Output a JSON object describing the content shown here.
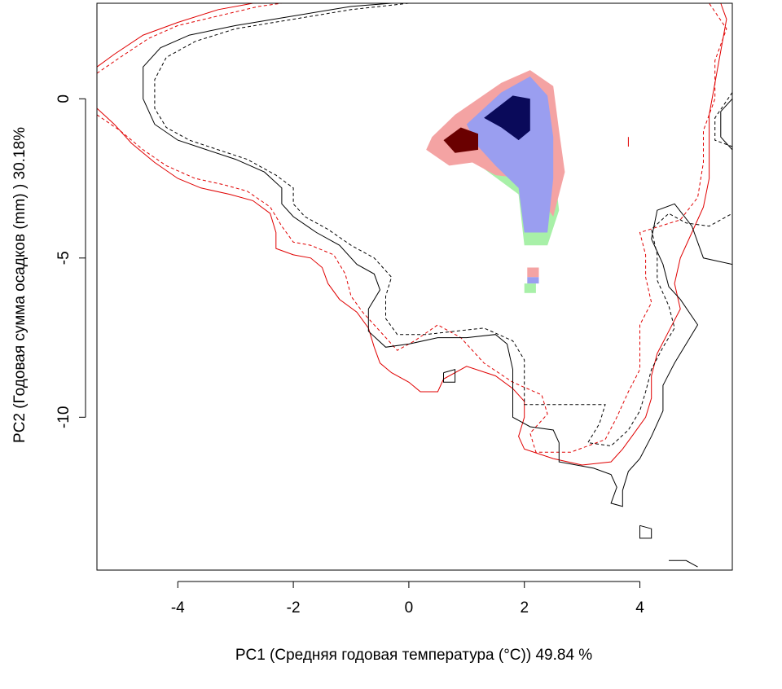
{
  "chart_data": {
    "type": "heatmap",
    "title": "",
    "xlabel": "PC1 (Средняя годовая температура (°C)) 49.84 %",
    "ylabel": "PC2 (Годовая сумма осадков  (mm) ) 30.18%",
    "xlim": [
      -5.4,
      5.6
    ],
    "ylim": [
      -14.8,
      3.0
    ],
    "x_ticks": [
      -4,
      -2,
      0,
      2,
      4
    ],
    "y_ticks": [
      0,
      -5,
      -10
    ],
    "grid": false,
    "legend": "none",
    "colors": {
      "red_contour": "#e00000",
      "black_contour": "#000000",
      "blue_density": "#9a9ef0",
      "blue_peak": "#0a0a5a",
      "red_density": "#f4a3a3",
      "red_peak": "#6a0000",
      "green_region": "#a8f0a8"
    },
    "series": [
      {
        "style": "red-solid",
        "color": "#e00000",
        "dash": false,
        "points": [
          [
            -5.4,
            -0.3
          ],
          [
            -5.1,
            -0.8
          ],
          [
            -4.8,
            -1.4
          ],
          [
            -4.4,
            -2.0
          ],
          [
            -4.0,
            -2.5
          ],
          [
            -3.6,
            -2.8
          ],
          [
            -3.1,
            -3.0
          ],
          [
            -2.7,
            -3.2
          ],
          [
            -2.4,
            -3.6
          ],
          [
            -2.3,
            -4.2
          ],
          [
            -2.3,
            -4.7
          ],
          [
            -2.0,
            -4.9
          ],
          [
            -1.7,
            -5.0
          ],
          [
            -1.5,
            -5.3
          ],
          [
            -1.4,
            -5.8
          ],
          [
            -1.2,
            -6.3
          ],
          [
            -0.9,
            -6.7
          ],
          [
            -0.7,
            -7.2
          ],
          [
            -0.6,
            -7.8
          ],
          [
            -0.5,
            -8.3
          ],
          [
            -0.3,
            -8.6
          ],
          [
            0.0,
            -8.9
          ],
          [
            0.2,
            -9.2
          ],
          [
            0.5,
            -9.2
          ],
          [
            0.6,
            -8.8
          ],
          [
            1.0,
            -8.4
          ],
          [
            1.5,
            -8.7
          ],
          [
            1.8,
            -9.1
          ],
          [
            2.0,
            -9.5
          ],
          [
            2.0,
            -10.0
          ],
          [
            1.9,
            -10.6
          ],
          [
            2.0,
            -11.0
          ],
          [
            2.5,
            -11.3
          ],
          [
            3.0,
            -11.5
          ],
          [
            3.5,
            -11.4
          ],
          [
            3.7,
            -11.0
          ],
          [
            3.9,
            -10.5
          ],
          [
            4.1,
            -10.0
          ],
          [
            4.2,
            -9.4
          ],
          [
            4.2,
            -8.7
          ],
          [
            4.3,
            -8.0
          ],
          [
            4.5,
            -7.3
          ],
          [
            4.7,
            -6.6
          ],
          [
            4.6,
            -5.8
          ],
          [
            4.7,
            -5.0
          ],
          [
            4.9,
            -4.2
          ],
          [
            5.1,
            -3.4
          ],
          [
            5.2,
            -2.5
          ],
          [
            5.2,
            -1.5
          ],
          [
            5.2,
            -0.5
          ],
          [
            5.3,
            0.5
          ],
          [
            5.4,
            1.5
          ],
          [
            5.5,
            2.5
          ],
          [
            5.4,
            3.0
          ]
        ]
      },
      {
        "style": "red-solid-top",
        "color": "#e00000",
        "dash": false,
        "points": [
          [
            -5.4,
            1.0
          ],
          [
            -5.1,
            1.4
          ],
          [
            -4.6,
            2.0
          ],
          [
            -4.0,
            2.4
          ],
          [
            -3.3,
            2.8
          ],
          [
            -2.7,
            3.0
          ],
          [
            -2.2,
            3.0
          ]
        ]
      },
      {
        "style": "red-dashed",
        "color": "#e00000",
        "dash": true,
        "points": [
          [
            -5.4,
            0.8
          ],
          [
            -5.0,
            1.3
          ],
          [
            -4.5,
            1.9
          ],
          [
            -4.0,
            2.3
          ],
          [
            -3.3,
            2.6
          ],
          [
            -2.6,
            2.9
          ],
          [
            -2.2,
            3.0
          ]
        ]
      },
      {
        "style": "red-dashed-main",
        "color": "#e00000",
        "dash": true,
        "points": [
          [
            -5.4,
            -0.5
          ],
          [
            -5.0,
            -1.0
          ],
          [
            -4.6,
            -1.6
          ],
          [
            -4.2,
            -2.1
          ],
          [
            -3.7,
            -2.5
          ],
          [
            -3.2,
            -2.7
          ],
          [
            -2.8,
            -2.9
          ],
          [
            -2.4,
            -3.4
          ],
          [
            -2.2,
            -4.0
          ],
          [
            -2.0,
            -4.5
          ],
          [
            -1.7,
            -4.6
          ],
          [
            -1.3,
            -4.9
          ],
          [
            -1.1,
            -5.5
          ],
          [
            -1.0,
            -6.2
          ],
          [
            -0.8,
            -6.7
          ],
          [
            -0.5,
            -7.3
          ],
          [
            -0.2,
            -7.9
          ],
          [
            0.1,
            -7.6
          ],
          [
            0.5,
            -7.1
          ],
          [
            0.9,
            -7.5
          ],
          [
            1.3,
            -8.3
          ],
          [
            1.8,
            -8.9
          ],
          [
            2.3,
            -9.3
          ],
          [
            2.4,
            -9.9
          ],
          [
            2.1,
            -10.5
          ],
          [
            2.2,
            -11.1
          ],
          [
            2.8,
            -11.1
          ],
          [
            3.4,
            -10.7
          ],
          [
            3.6,
            -10.0
          ],
          [
            3.8,
            -9.2
          ],
          [
            4.0,
            -8.5
          ],
          [
            4.0,
            -7.8
          ],
          [
            4.0,
            -7.1
          ],
          [
            4.2,
            -6.4
          ],
          [
            4.1,
            -5.6
          ],
          [
            4.1,
            -4.9
          ],
          [
            4.0,
            -4.2
          ],
          [
            4.7,
            -3.8
          ],
          [
            5.0,
            -3.1
          ],
          [
            5.1,
            -2.0
          ],
          [
            5.1,
            -1.0
          ],
          [
            5.3,
            0.0
          ],
          [
            5.3,
            1.2
          ],
          [
            5.5,
            2.2
          ],
          [
            5.2,
            3.0
          ]
        ]
      },
      {
        "style": "black-solid",
        "color": "#000000",
        "dash": false,
        "points": [
          [
            -0.3,
            3.0
          ],
          [
            -1.0,
            2.9
          ],
          [
            -2.0,
            2.6
          ],
          [
            -3.0,
            2.3
          ],
          [
            -3.8,
            2.0
          ],
          [
            -4.3,
            1.6
          ],
          [
            -4.6,
            1.0
          ],
          [
            -4.6,
            0.0
          ],
          [
            -4.4,
            -0.8
          ],
          [
            -4.0,
            -1.3
          ],
          [
            -3.5,
            -1.6
          ],
          [
            -3.0,
            -1.9
          ],
          [
            -2.5,
            -2.3
          ],
          [
            -2.2,
            -2.8
          ],
          [
            -2.2,
            -3.3
          ],
          [
            -2.0,
            -3.7
          ],
          [
            -1.6,
            -4.2
          ],
          [
            -1.2,
            -4.6
          ],
          [
            -0.9,
            -5.2
          ],
          [
            -0.6,
            -5.5
          ],
          [
            -0.5,
            -6.0
          ],
          [
            -0.7,
            -6.6
          ],
          [
            -0.7,
            -7.3
          ],
          [
            -0.4,
            -7.8
          ],
          [
            0.0,
            -7.7
          ],
          [
            0.5,
            -7.5
          ],
          [
            1.0,
            -7.5
          ],
          [
            1.5,
            -7.4
          ],
          [
            1.7,
            -7.7
          ],
          [
            1.8,
            -8.5
          ],
          [
            1.8,
            -9.2
          ],
          [
            1.8,
            -10.0
          ],
          [
            2.1,
            -10.3
          ],
          [
            2.5,
            -10.4
          ],
          [
            2.6,
            -10.8
          ],
          [
            2.6,
            -11.4
          ],
          [
            3.2,
            -11.6
          ],
          [
            3.5,
            -11.8
          ],
          [
            3.6,
            -12.2
          ],
          [
            3.5,
            -12.7
          ],
          [
            3.7,
            -12.8
          ],
          [
            3.7,
            -12.3
          ],
          [
            3.8,
            -11.7
          ],
          [
            4.0,
            -11.3
          ],
          [
            4.2,
            -10.6
          ],
          [
            4.4,
            -9.8
          ],
          [
            4.4,
            -9.0
          ],
          [
            4.6,
            -8.3
          ],
          [
            4.8,
            -7.7
          ],
          [
            5.0,
            -7.1
          ],
          [
            4.7,
            -6.3
          ],
          [
            4.5,
            -5.9
          ],
          [
            4.4,
            -5.2
          ],
          [
            4.2,
            -4.4
          ],
          [
            4.3,
            -3.5
          ],
          [
            4.6,
            -3.3
          ],
          [
            4.9,
            -4.0
          ],
          [
            5.1,
            -5.0
          ],
          [
            5.6,
            -5.2
          ]
        ]
      },
      {
        "style": "black-dashed",
        "color": "#000000",
        "dash": true,
        "points": [
          [
            0.0,
            3.0
          ],
          [
            -1.0,
            2.8
          ],
          [
            -2.0,
            2.5
          ],
          [
            -3.0,
            2.2
          ],
          [
            -3.7,
            1.8
          ],
          [
            -4.2,
            1.3
          ],
          [
            -4.4,
            0.6
          ],
          [
            -4.4,
            -0.3
          ],
          [
            -4.2,
            -0.9
          ],
          [
            -3.8,
            -1.3
          ],
          [
            -3.3,
            -1.6
          ],
          [
            -2.8,
            -1.9
          ],
          [
            -2.3,
            -2.4
          ],
          [
            -2.0,
            -2.8
          ],
          [
            -2.0,
            -3.3
          ],
          [
            -1.8,
            -3.7
          ],
          [
            -1.4,
            -4.1
          ],
          [
            -1.0,
            -4.6
          ],
          [
            -0.6,
            -5.0
          ],
          [
            -0.3,
            -5.6
          ],
          [
            -0.4,
            -6.2
          ],
          [
            -0.4,
            -6.9
          ],
          [
            -0.2,
            -7.4
          ],
          [
            0.3,
            -7.4
          ],
          [
            0.8,
            -7.3
          ],
          [
            1.3,
            -7.2
          ],
          [
            1.8,
            -7.6
          ],
          [
            2.0,
            -8.2
          ],
          [
            2.0,
            -8.9
          ],
          [
            2.0,
            -9.6
          ],
          [
            2.5,
            -9.6
          ],
          [
            3.0,
            -9.6
          ],
          [
            3.4,
            -9.6
          ],
          [
            3.3,
            -10.2
          ],
          [
            3.1,
            -10.8
          ],
          [
            3.5,
            -10.9
          ],
          [
            3.8,
            -10.4
          ],
          [
            4.0,
            -9.8
          ],
          [
            4.1,
            -9.2
          ],
          [
            4.2,
            -8.5
          ],
          [
            4.4,
            -7.8
          ],
          [
            4.6,
            -7.2
          ],
          [
            4.5,
            -6.5
          ],
          [
            4.3,
            -5.7
          ],
          [
            4.3,
            -4.9
          ],
          [
            4.2,
            -4.1
          ],
          [
            4.5,
            -3.6
          ],
          [
            4.8,
            -3.9
          ],
          [
            5.2,
            -4.0
          ],
          [
            5.6,
            -3.6
          ]
        ]
      },
      {
        "style": "black-solid-right",
        "color": "#000000",
        "dash": false,
        "points": [
          [
            5.6,
            0.0
          ],
          [
            5.4,
            -0.4
          ],
          [
            5.4,
            -1.2
          ],
          [
            5.6,
            -1.6
          ]
        ]
      },
      {
        "style": "black-dashed-right",
        "color": "#000000",
        "dash": true,
        "points": [
          [
            5.6,
            0.2
          ],
          [
            5.3,
            -0.6
          ],
          [
            5.3,
            -1.3
          ],
          [
            5.6,
            -1.5
          ]
        ]
      },
      {
        "style": "black-small-loop",
        "color": "#000000",
        "dash": false,
        "points": [
          [
            0.6,
            -8.6
          ],
          [
            0.8,
            -8.5
          ],
          [
            0.8,
            -8.9
          ],
          [
            0.6,
            -8.9
          ],
          [
            0.6,
            -8.6
          ]
        ]
      },
      {
        "style": "black-small-loop-2",
        "color": "#000000",
        "dash": false,
        "points": [
          [
            4.0,
            -13.4
          ],
          [
            4.2,
            -13.5
          ],
          [
            4.2,
            -13.8
          ],
          [
            4.0,
            -13.8
          ],
          [
            4.0,
            -13.4
          ]
        ]
      },
      {
        "style": "black-bottom-fragment",
        "color": "#000000",
        "dash": false,
        "points": [
          [
            4.5,
            -14.5
          ],
          [
            4.8,
            -14.5
          ],
          [
            5.0,
            -14.7
          ]
        ]
      },
      {
        "style": "red-tick-fragment",
        "color": "#e00000",
        "dash": false,
        "points": [
          [
            3.8,
            -1.2
          ],
          [
            3.8,
            -1.5
          ]
        ]
      }
    ]
  }
}
